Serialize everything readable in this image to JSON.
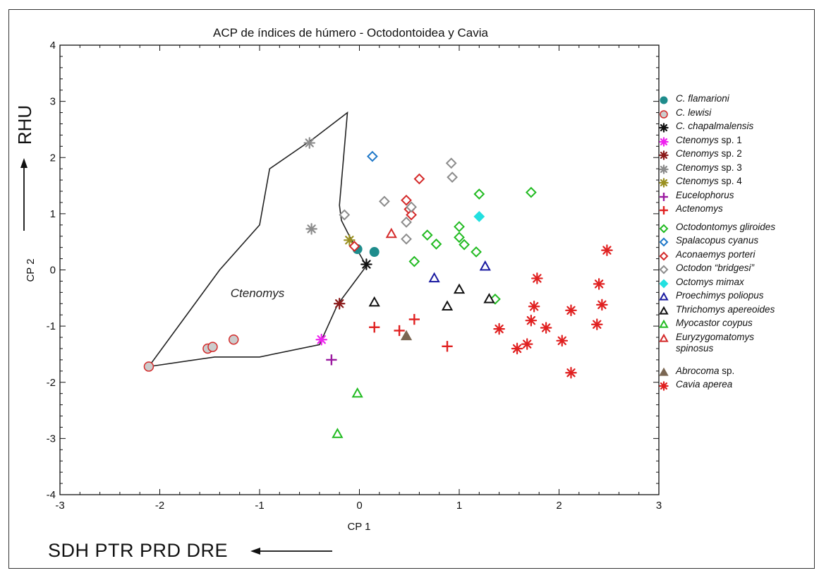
{
  "chart_data": {
    "type": "scatter",
    "title": "ACP de índices de húmero - Octodontoidea y Cavia",
    "xlabel": "CP 1",
    "ylabel": "CP 2",
    "xlim": [
      -3,
      3
    ],
    "ylim": [
      -4,
      4
    ],
    "xticks": [
      -3,
      -2,
      -1,
      0,
      1,
      2,
      3
    ],
    "yticks": [
      -4,
      -3,
      -2,
      -1,
      0,
      1,
      2,
      3,
      4
    ],
    "grid": false,
    "legend_position": "right",
    "annotations": {
      "ctenomys_label": "Ctenomys",
      "rhu_label": "RHU",
      "bottom_label": "SDH  PTR  PRD  DRE"
    },
    "ctenomys_polygon": [
      [
        -2.11,
        -1.72
      ],
      [
        -1.45,
        -1.55
      ],
      [
        -1.25,
        -1.55
      ],
      [
        -1.0,
        -1.55
      ],
      [
        -0.4,
        -1.33
      ],
      [
        -0.22,
        -0.62
      ],
      [
        0.07,
        0.07
      ],
      [
        -0.1,
        0.6
      ],
      [
        -0.18,
        0.88
      ],
      [
        -0.2,
        1.15
      ],
      [
        -0.12,
        2.8
      ],
      [
        -0.45,
        2.35
      ],
      [
        -0.9,
        1.8
      ],
      [
        -1.0,
        0.8
      ],
      [
        -1.4,
        0.0
      ],
      [
        -2.11,
        -1.72
      ]
    ],
    "series": [
      {
        "name": "C. flamarioni",
        "color": "#1e8c8c",
        "marker": "circle-filled",
        "points": [
          [
            -0.02,
            0.37
          ],
          [
            0.15,
            0.32
          ]
        ]
      },
      {
        "name": "C. lewisi",
        "color": "#d42a2a",
        "marker": "circle-lightfill",
        "points": [
          [
            -2.11,
            -1.72
          ],
          [
            -1.52,
            -1.4
          ],
          [
            -1.47,
            -1.37
          ],
          [
            -1.26,
            -1.24
          ]
        ]
      },
      {
        "name": "C. chapalmalensis",
        "color": "#111111",
        "marker": "asterisk",
        "points": [
          [
            0.07,
            0.1
          ]
        ]
      },
      {
        "name": "Ctenomys sp. 1",
        "color": "#ee22ee",
        "marker": "asterisk",
        "points": [
          [
            -0.38,
            -1.24
          ]
        ]
      },
      {
        "name": "Ctenomys sp. 2",
        "color": "#8b1a1a",
        "marker": "asterisk",
        "points": [
          [
            -0.2,
            -0.6
          ]
        ]
      },
      {
        "name": "Ctenomys sp. 3",
        "color": "#8c8c8c",
        "marker": "asterisk",
        "points": [
          [
            -0.5,
            2.26
          ],
          [
            -0.48,
            0.73
          ]
        ]
      },
      {
        "name": "Ctenomys sp. 4",
        "color": "#9a9020",
        "marker": "asterisk",
        "points": [
          [
            -0.1,
            0.53
          ]
        ]
      },
      {
        "name": "Eucelophorus",
        "color": "#9b1aa0",
        "marker": "plus",
        "points": [
          [
            -0.28,
            -1.6
          ]
        ]
      },
      {
        "name": "Actenomys",
        "color": "#e02020",
        "marker": "plus",
        "points": [
          [
            0.15,
            -1.02
          ],
          [
            0.4,
            -1.08
          ],
          [
            0.55,
            -0.88
          ],
          [
            0.88,
            -1.36
          ]
        ]
      },
      {
        "name": "Octodontomys gliroides",
        "color": "#22bb22",
        "marker": "diamond-open",
        "points": [
          [
            0.68,
            0.62
          ],
          [
            0.77,
            0.46
          ],
          [
            0.55,
            0.15
          ],
          [
            1.0,
            0.77
          ],
          [
            1.0,
            0.58
          ],
          [
            1.05,
            0.45
          ],
          [
            1.17,
            0.32
          ],
          [
            1.2,
            1.35
          ],
          [
            1.72,
            1.38
          ],
          [
            1.36,
            -0.52
          ]
        ]
      },
      {
        "name": "Spalacopus cyanus",
        "color": "#1f78c8",
        "marker": "diamond-open",
        "points": [
          [
            0.13,
            2.02
          ]
        ]
      },
      {
        "name": "Aconaemys porteri",
        "color": "#d42a2a",
        "marker": "diamond-open",
        "points": [
          [
            0.47,
            1.24
          ],
          [
            0.5,
            1.08
          ],
          [
            0.52,
            0.98
          ],
          [
            0.6,
            1.62
          ],
          [
            -0.05,
            0.42
          ]
        ]
      },
      {
        "name": "Octodon “bridgesi”",
        "color": "#8c8c8c",
        "marker": "diamond-open",
        "points": [
          [
            -0.15,
            0.98
          ],
          [
            0.25,
            1.22
          ],
          [
            0.47,
            0.85
          ],
          [
            0.47,
            0.55
          ],
          [
            0.52,
            1.12
          ],
          [
            0.92,
            1.9
          ],
          [
            0.93,
            1.65
          ]
        ]
      },
      {
        "name": "Octomys mimax",
        "color": "#22e0e0",
        "marker": "diamond-filled",
        "points": [
          [
            1.2,
            0.95
          ]
        ]
      },
      {
        "name": "Proechimys poliopus",
        "color": "#1a1aa0",
        "marker": "triangle-open",
        "points": [
          [
            0.75,
            -0.15
          ],
          [
            1.26,
            0.06
          ]
        ]
      },
      {
        "name": "Thrichomys apereoides",
        "color": "#111111",
        "marker": "triangle-open",
        "points": [
          [
            0.15,
            -0.58
          ],
          [
            0.88,
            -0.65
          ],
          [
            1.0,
            -0.35
          ],
          [
            1.3,
            -0.52
          ]
        ]
      },
      {
        "name": "Myocastor coypus",
        "color": "#22bb22",
        "marker": "triangle-open",
        "points": [
          [
            -0.02,
            -2.2
          ],
          [
            -0.22,
            -2.92
          ]
        ]
      },
      {
        "name": "Euryzygomatomys spinosus",
        "color": "#d42a2a",
        "marker": "triangle-open",
        "points": [
          [
            0.32,
            0.64
          ]
        ]
      },
      {
        "name": "Abrocoma sp.",
        "color": "#7a6652",
        "marker": "triangle-filled",
        "points": [
          [
            0.47,
            -1.18
          ]
        ]
      },
      {
        "name": "Cavia aperea",
        "color": "#e02020",
        "marker": "asterisk",
        "points": [
          [
            1.4,
            -1.05
          ],
          [
            1.58,
            -1.4
          ],
          [
            1.68,
            -1.32
          ],
          [
            1.72,
            -0.9
          ],
          [
            1.75,
            -0.65
          ],
          [
            1.78,
            -0.15
          ],
          [
            1.87,
            -1.03
          ],
          [
            2.03,
            -1.26
          ],
          [
            2.12,
            -0.72
          ],
          [
            2.12,
            -1.83
          ],
          [
            2.38,
            -0.97
          ],
          [
            2.4,
            -0.25
          ],
          [
            2.43,
            -0.62
          ],
          [
            2.48,
            0.35
          ]
        ]
      }
    ]
  },
  "legend": {
    "entries": [
      {
        "label": "C. flamarioni",
        "note": ""
      },
      {
        "label": "C. lewisi",
        "note": ""
      },
      {
        "label": "C. chapalmalensis",
        "note": ""
      },
      {
        "label": "Ctenomys",
        "note": "sp. 1"
      },
      {
        "label": "Ctenomys",
        "note": "sp. 2"
      },
      {
        "label": "Ctenomys",
        "note": "sp. 3"
      },
      {
        "label": "Ctenomys",
        "note": "sp. 4"
      },
      {
        "label": "Eucelophorus",
        "note": ""
      },
      {
        "label": "Actenomys",
        "note": ""
      },
      {
        "label": "Octodontomys gliroides",
        "note": ""
      },
      {
        "label": "Spalacopus cyanus",
        "note": ""
      },
      {
        "label": "Aconaemys porteri",
        "note": ""
      },
      {
        "label": "Octodon “bridgesi”",
        "note": ""
      },
      {
        "label": "Octomys mimax",
        "note": ""
      },
      {
        "label": "Proechimys poliopus",
        "note": ""
      },
      {
        "label": "Thrichomys apereoides",
        "note": ""
      },
      {
        "label": "Myocastor coypus",
        "note": ""
      },
      {
        "label": "Euryzygomatomys spinosus",
        "note": ""
      },
      {
        "label": "Abrocoma",
        "note": "sp."
      },
      {
        "label": "Cavia aperea",
        "note": ""
      }
    ]
  }
}
